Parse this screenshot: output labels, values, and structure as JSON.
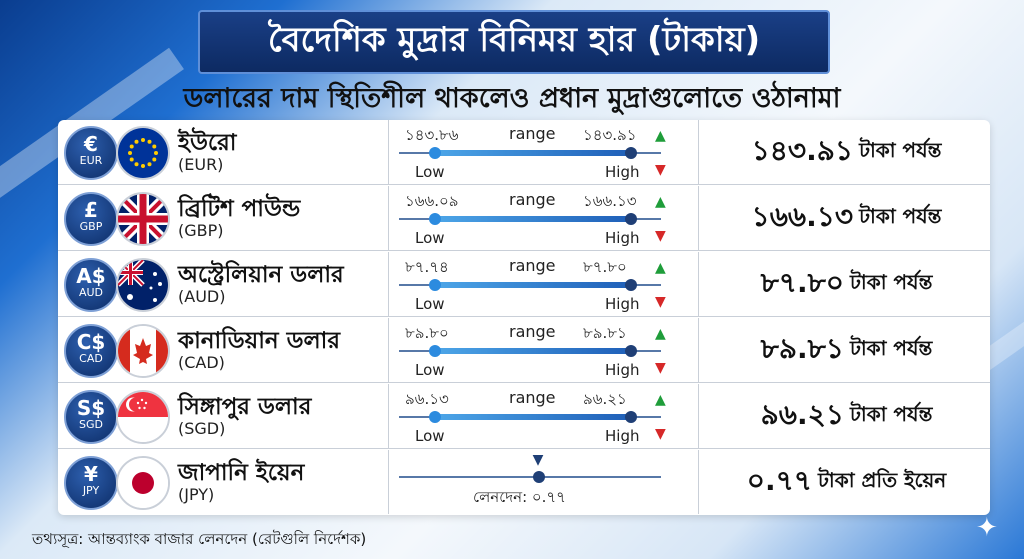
{
  "header": {
    "title": "বৈদেশিক মুদ্রার বিনিময় হার (টাকায়)",
    "subtitle": "ডলারের দাম স্থিতিশীল থাকলেও প্রধান মুদ্রাগুলোতে ওঠানামা"
  },
  "labels": {
    "range": "range",
    "low": "Low",
    "high": "High",
    "up_arrow": "▲",
    "down_arrow": "▼"
  },
  "currencies": [
    {
      "symbol": "€",
      "code": "EUR",
      "name": "ইউরো",
      "code_paren": "(EUR)",
      "low": "১৪৩.৮৬",
      "high": "১৪৩.৯১",
      "rate": "১৪৩.৯১",
      "rate_unit": "টাকা পর্যন্ত",
      "flag_icon": "eu-flag-icon"
    },
    {
      "symbol": "£",
      "code": "GBP",
      "name": "ব্রিটিশ পাউন্ড",
      "code_paren": "(GBP)",
      "low": "১৬৬.০৯",
      "high": "১৬৬.১৩",
      "rate": "১৬৬.১৩",
      "rate_unit": "টাকা পর্যন্ত",
      "flag_icon": "uk-flag-icon"
    },
    {
      "symbol": "A$",
      "code": "AUD",
      "name": "অস্ট্রেলিয়ান ডলার",
      "code_paren": "(AUD)",
      "low": "৮৭.৭৪",
      "high": "৮৭.৮০",
      "rate": "৮৭.৮০",
      "rate_unit": "টাকা পর্যন্ত",
      "flag_icon": "australia-flag-icon"
    },
    {
      "symbol": "C$",
      "code": "CAD",
      "name": "কানাডিয়ান ডলার",
      "code_paren": "(CAD)",
      "low": "৮৯.৮০",
      "high": "৮৯.৮১",
      "rate": "৮৯.৮১",
      "rate_unit": "টাকা পর্যন্ত",
      "flag_icon": "canada-flag-icon"
    },
    {
      "symbol": "S$",
      "code": "SGD",
      "name": "সিঙ্গাপুর ডলার",
      "code_paren": "(SGD)",
      "low": "৯৬.১৩",
      "high": "৯৬.২১",
      "rate": "৯৬.২১",
      "rate_unit": "টাকা পর্যন্ত",
      "flag_icon": "singapore-flag-icon"
    },
    {
      "symbol": "¥",
      "code": "JPY",
      "name": "জাপানি ইয়েন",
      "code_paren": "(JPY)",
      "trade_label": "লেনদেন: ০.৭৭",
      "rate": "০.৭৭",
      "rate_unit": "টাকা প্রতি ইয়েন",
      "flag_icon": "japan-flag-icon"
    }
  ],
  "footer": {
    "source": "তথ্যসূত্র: আন্তব্যাংক বাজার লেনদেন (রেটগুলি নির্দেশক)"
  },
  "colors": {
    "banner": "#0d2a62",
    "up": "#1f9d3a",
    "down": "#d62828",
    "bar": "#2c8bdf"
  }
}
